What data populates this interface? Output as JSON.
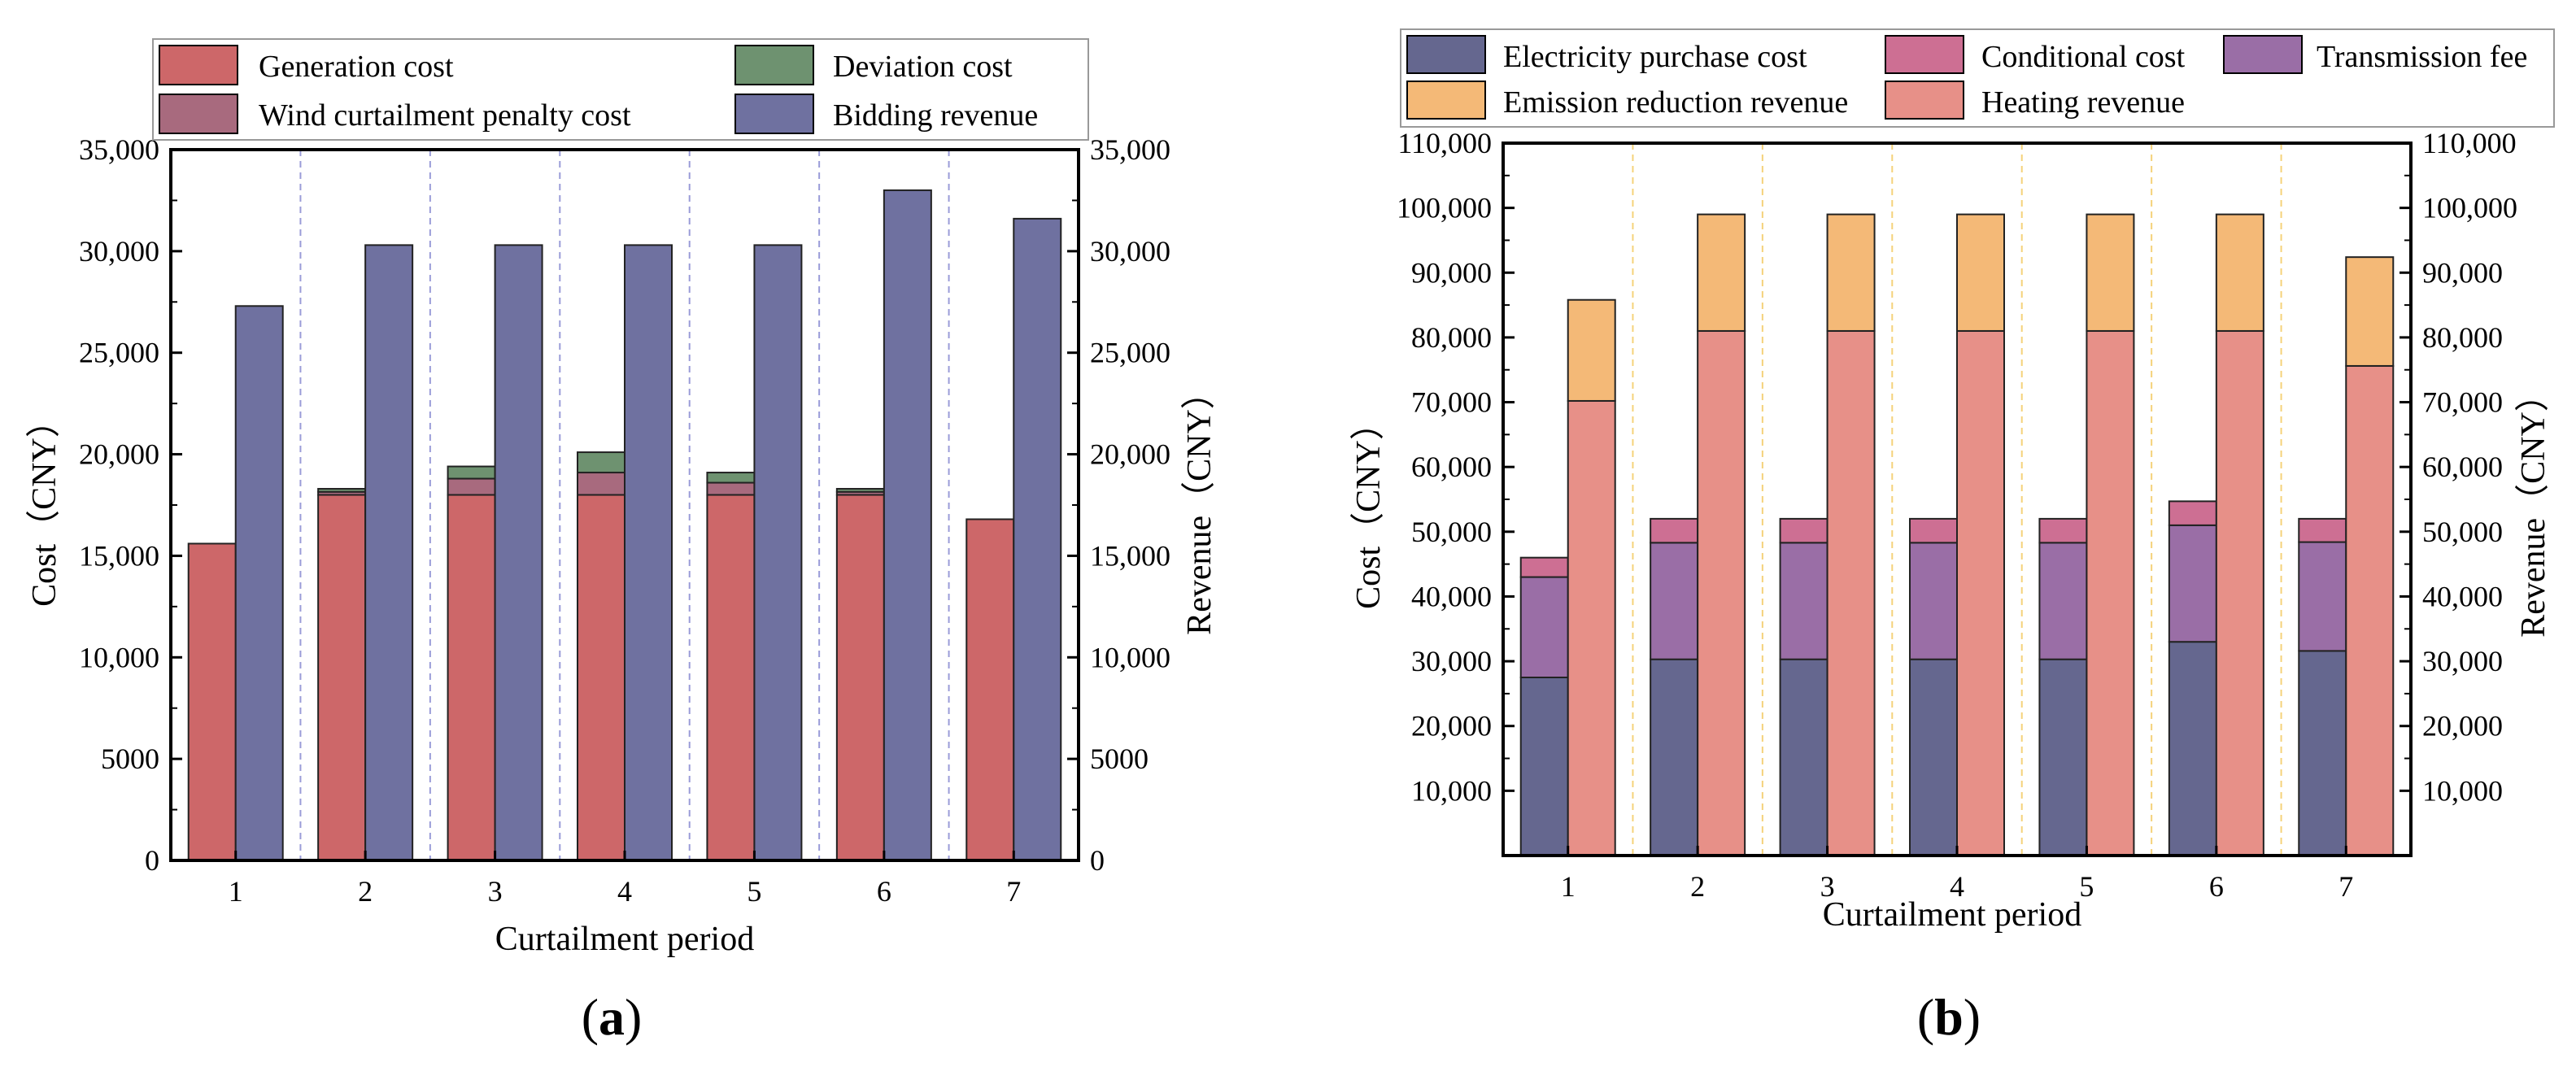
{
  "colors": {
    "generation": "#cd6769",
    "wind_penalty": "#a86a7e",
    "deviation": "#6e9270",
    "bidding": "#6f71a0",
    "purchase": "#65678f",
    "conditional": "#cd6f93",
    "transmission": "#9a6ea6",
    "emission": "#f4b977",
    "heating": "#e79088",
    "grid_a": "#9a9cd8",
    "grid_b": "#f5d27a"
  },
  "chart_data": [
    {
      "id": "a",
      "panel_label": "a",
      "type": "bar",
      "categories": [
        "1",
        "2",
        "3",
        "4",
        "5",
        "6",
        "7"
      ],
      "xlabel": "Curtailment period",
      "ylabel_left": "Cost（CNY）",
      "ylabel_right": "Revenue（CNY）",
      "ylim": [
        0,
        35000
      ],
      "ticks": [
        0,
        5000,
        10000,
        15000,
        20000,
        25000,
        30000,
        35000
      ],
      "tick_labels": [
        "0",
        "5000",
        "10,000",
        "15,000",
        "20,000",
        "25,000",
        "30,000",
        "35,000"
      ],
      "grid": "vertical dashed separators",
      "legend_position": "top",
      "legend": [
        "Generation cost",
        "Deviation cost",
        "Wind curtailment penalty cost",
        "Bidding revenue"
      ],
      "cost_series": [
        {
          "name": "Generation cost",
          "color_key": "generation",
          "values": [
            15600,
            18000,
            18000,
            18000,
            18000,
            18000,
            16800
          ]
        },
        {
          "name": "Wind curtailment penalty cost",
          "color_key": "wind_penalty",
          "values": [
            0,
            150,
            800,
            1100,
            600,
            150,
            0
          ]
        },
        {
          "name": "Deviation cost",
          "color_key": "deviation",
          "values": [
            0,
            150,
            600,
            1000,
            500,
            150,
            0
          ]
        }
      ],
      "revenue_series": [
        {
          "name": "Bidding revenue",
          "color_key": "bidding",
          "values": [
            27300,
            30300,
            30300,
            30300,
            30300,
            33000,
            31600
          ]
        }
      ]
    },
    {
      "id": "b",
      "panel_label": "b",
      "type": "bar",
      "categories": [
        "1",
        "2",
        "3",
        "4",
        "5",
        "6",
        "7"
      ],
      "xlabel": "Curtailment period",
      "ylabel_left": "Cost（CNY）",
      "ylabel_right": "Revenue（CNY）",
      "ylim": [
        0,
        110000
      ],
      "ticks": [
        10000,
        20000,
        30000,
        40000,
        50000,
        60000,
        70000,
        80000,
        90000,
        100000,
        110000
      ],
      "tick_labels": [
        "10,000",
        "20,000",
        "30,000",
        "40,000",
        "50,000",
        "60,000",
        "70,000",
        "80,000",
        "90,000",
        "100,000",
        "110,000"
      ],
      "grid": "vertical dashed separators",
      "legend_position": "top",
      "legend": [
        "Electricity purchase cost",
        "Conditional cost",
        "Transmission fee",
        "Emission reduction revenue",
        "Heating revenue"
      ],
      "cost_series": [
        {
          "name": "Electricity purchase cost",
          "color_key": "purchase",
          "values": [
            27500,
            30300,
            30300,
            30300,
            30300,
            33000,
            31600
          ]
        },
        {
          "name": "Transmission fee",
          "color_key": "transmission",
          "values": [
            15500,
            18000,
            18000,
            18000,
            18000,
            18000,
            16800
          ]
        },
        {
          "name": "Conditional cost",
          "color_key": "conditional",
          "values": [
            3000,
            3700,
            3700,
            3700,
            3700,
            3700,
            3600
          ]
        }
      ],
      "revenue_series": [
        {
          "name": "Heating revenue",
          "color_key": "heating",
          "values": [
            70200,
            81000,
            81000,
            81000,
            81000,
            81000,
            75600
          ]
        },
        {
          "name": "Emission reduction revenue",
          "color_key": "emission",
          "values": [
            15600,
            18000,
            18000,
            18000,
            18000,
            18000,
            16800
          ]
        }
      ]
    }
  ]
}
